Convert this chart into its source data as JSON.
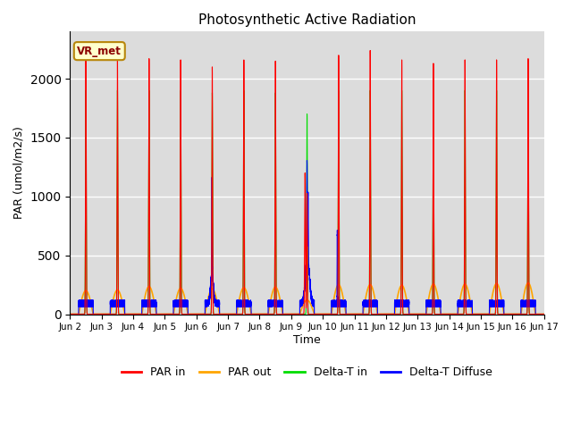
{
  "title": "Photosynthetic Active Radiation",
  "ylabel": "PAR (umol/m2/s)",
  "xlabel": "Time",
  "annotation": "VR_met",
  "ylim": [
    0,
    2400
  ],
  "n_days": 15,
  "x_tick_labels": [
    "Jun 2",
    "Jun 3",
    "Jun 4",
    "Jun 5",
    "Jun 6",
    "Jun 7",
    "Jun 8",
    "Jun 9",
    "Jun 10",
    "Jun 11",
    "Jun 12",
    "Jun 13",
    "Jun 14",
    "Jun 15",
    "Jun 16",
    "Jun 17"
  ],
  "colors": {
    "PAR_in": "#ff0000",
    "PAR_out": "#ffa500",
    "Delta_T_in": "#00dd00",
    "Delta_T_Diffuse": "#0000ff"
  },
  "background_color": "#dcdcdc",
  "legend_labels": [
    "PAR in",
    "PAR out",
    "Delta-T in",
    "Delta-T Diffuse"
  ]
}
